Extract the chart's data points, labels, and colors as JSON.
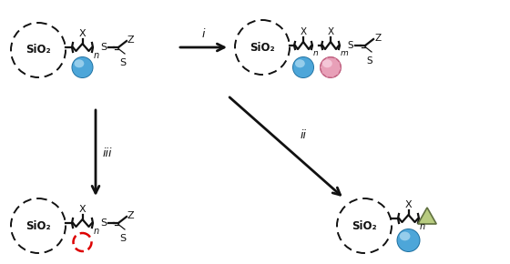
{
  "background": "#ffffff",
  "sio2_text": "SiO₂",
  "chain_color": "#111111",
  "blue_color_main": "#4da6d9",
  "blue_color_light": "#a8d8f0",
  "blue_color_dark": "#2070a0",
  "pink_color_main": "#e8a0b8",
  "pink_color_light": "#f8d0e0",
  "pink_color_dark": "#c06080",
  "red_circle_color": "#dd0000",
  "green_tri_fill": "#b8cc80",
  "green_tri_edge": "#607040",
  "dash_color": "#111111",
  "label_i": "i",
  "label_ii": "ii",
  "label_iii": "iii"
}
